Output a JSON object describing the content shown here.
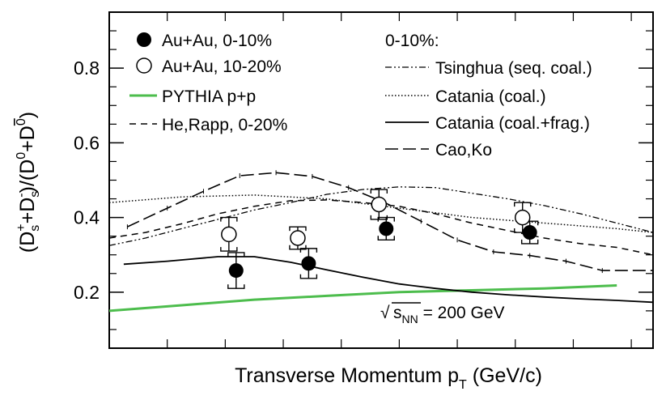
{
  "chart_data": {
    "type": "scatter",
    "xlabel_main": "Transverse Momentum p",
    "xlabel_sub": "T",
    "xlabel_unit": " (GeV/c)",
    "ylabel_parts": [
      "(D",
      "s",
      "+",
      "+D",
      "s",
      "-",
      ")/(D",
      "0",
      "+D",
      "0",
      ")"
    ],
    "xlim": [
      0,
      7.5
    ],
    "ylim": [
      0.05,
      0.95
    ],
    "yticks": [
      0.2,
      0.4,
      0.6,
      0.8
    ],
    "ytick_labels": [
      "0.2",
      "0.4",
      "0.6",
      "0.8"
    ],
    "xticks_minor": [
      0.8,
      1.6,
      2.4,
      3.2,
      4.0,
      4.8,
      5.6,
      6.4,
      7.2
    ],
    "annotation_energy": {
      "symbol": "√",
      "s": "s",
      "sub": "NN",
      "rest": " = 200 GeV"
    },
    "legend_header_right": "0-10%:",
    "data_series": [
      {
        "name": "Au+Au, 0-10%",
        "marker": "filled-circle",
        "points": [
          {
            "x": 1.75,
            "y": 0.258,
            "yerr": 0.048,
            "sys": 0.048
          },
          {
            "x": 2.75,
            "y": 0.277,
            "yerr": 0.04,
            "sys": 0.04
          },
          {
            "x": 3.82,
            "y": 0.37,
            "yerr": 0.03,
            "sys": 0.03
          },
          {
            "x": 5.8,
            "y": 0.36,
            "yerr": 0.03,
            "sys": 0.03
          }
        ]
      },
      {
        "name": "Au+Au, 10-20%",
        "marker": "open-circle",
        "points": [
          {
            "x": 1.65,
            "y": 0.355,
            "yerr": 0.045,
            "sys": 0.045
          },
          {
            "x": 2.6,
            "y": 0.345,
            "yerr": 0.03,
            "sys": 0.03
          },
          {
            "x": 3.72,
            "y": 0.435,
            "yerr": 0.04,
            "sys": 0.04
          },
          {
            "x": 5.7,
            "y": 0.4,
            "yerr": 0.04,
            "sys": 0.04
          }
        ]
      }
    ],
    "model_series": [
      {
        "name": "PYTHIA p+p",
        "style": "solid-green",
        "color": "#4dbd4d",
        "x": [
          0,
          1,
          2,
          3,
          4,
          5,
          6,
          7.0
        ],
        "y": [
          0.15,
          0.165,
          0.18,
          0.19,
          0.2,
          0.205,
          0.21,
          0.218
        ]
      },
      {
        "name": "He,Rapp, 0-20%",
        "style": "short-dash",
        "x": [
          0,
          0.5,
          1,
          1.5,
          2,
          2.5,
          3,
          3.5,
          4,
          4.5,
          5,
          5.5,
          6,
          6.5,
          7,
          7.5
        ],
        "y": [
          0.345,
          0.36,
          0.383,
          0.41,
          0.43,
          0.445,
          0.447,
          0.44,
          0.43,
          0.41,
          0.385,
          0.365,
          0.345,
          0.33,
          0.32,
          0.3
        ]
      },
      {
        "name": "Tsinghua (seq. coal.)",
        "style": "dash-dot-dot",
        "x": [
          0,
          0.5,
          1,
          1.5,
          2,
          2.5,
          3,
          3.5,
          4,
          4.5,
          5,
          5.5,
          6,
          6.5,
          7,
          7.5
        ],
        "y": [
          0.325,
          0.345,
          0.37,
          0.395,
          0.42,
          0.44,
          0.462,
          0.475,
          0.482,
          0.48,
          0.465,
          0.45,
          0.432,
          0.41,
          0.385,
          0.36
        ]
      },
      {
        "name": "Catania (coal.)",
        "style": "dotted",
        "x": [
          0,
          1,
          2,
          3,
          4,
          5,
          6,
          7,
          7.5
        ],
        "y": [
          0.44,
          0.455,
          0.46,
          0.45,
          0.425,
          0.4,
          0.385,
          0.37,
          0.36
        ]
      },
      {
        "name": "Catania (coal.+frag.)",
        "style": "solid-black",
        "x": [
          0.2,
          0.8,
          1.5,
          2.0,
          2.5,
          3.0,
          3.5,
          4.0,
          4.5,
          5.0,
          5.5,
          6.0,
          6.5,
          7.0,
          7.5
        ],
        "y": [
          0.275,
          0.283,
          0.295,
          0.295,
          0.28,
          0.26,
          0.24,
          0.222,
          0.21,
          0.2,
          0.193,
          0.187,
          0.182,
          0.178,
          0.173
        ]
      },
      {
        "name": "Cao,Ko",
        "style": "long-dash",
        "x": [
          0.25,
          0.8,
          1.3,
          1.8,
          2.3,
          2.8,
          3.3,
          3.8,
          4.3,
          4.8,
          5.3,
          5.8,
          6.3,
          6.8,
          7.5
        ],
        "y": [
          0.375,
          0.425,
          0.47,
          0.512,
          0.52,
          0.51,
          0.48,
          0.44,
          0.39,
          0.34,
          0.308,
          0.298,
          0.283,
          0.258,
          0.258
        ]
      }
    ]
  }
}
